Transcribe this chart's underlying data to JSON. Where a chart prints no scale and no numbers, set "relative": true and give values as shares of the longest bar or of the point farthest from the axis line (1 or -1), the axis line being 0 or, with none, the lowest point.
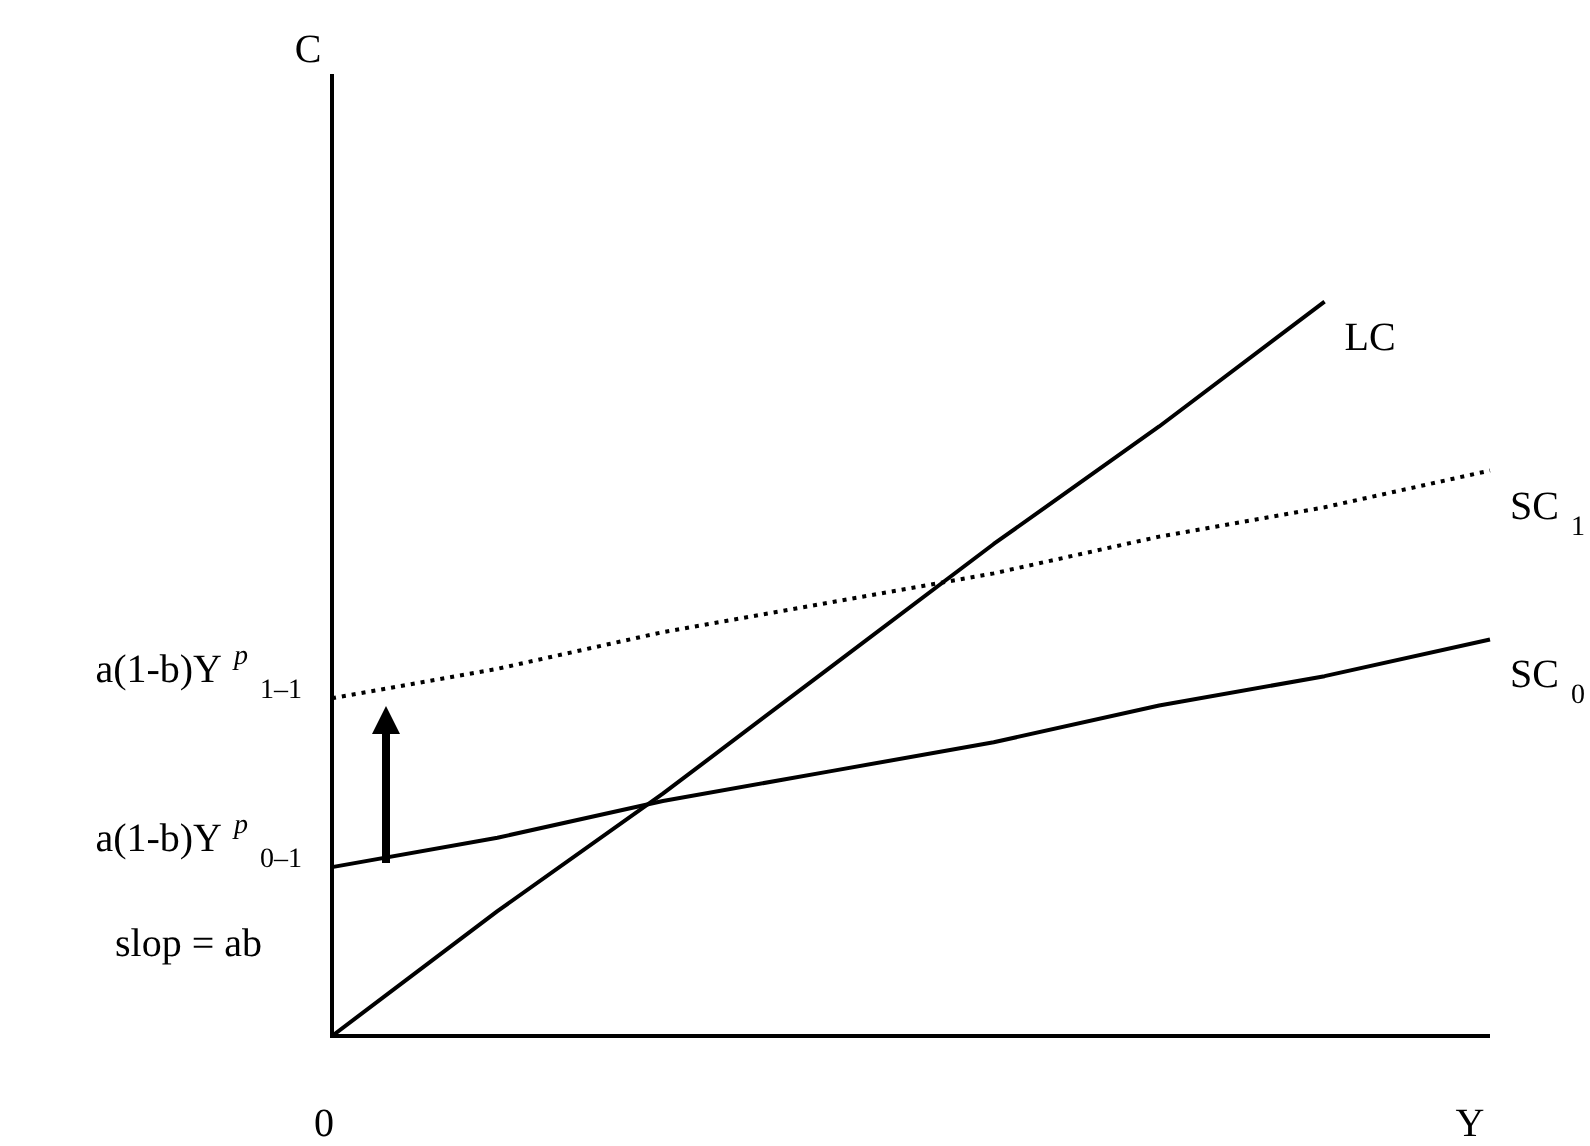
{
  "chart_data": {
    "type": "line",
    "relative": true,
    "xlabel": "Y",
    "categories": [
      null,
      null,
      null,
      null,
      null,
      null,
      null,
      null
    ],
    "series": [
      {
        "name": "LC",
        "color": "#000000",
        "line_style": "solid",
        "values": [
          0,
          0.17,
          0.33,
          0.5,
          0.67,
          0.83,
          1,
          null
        ]
      },
      {
        "name": "SC$_{1}$",
        "color": "#000000",
        "line_style": "dotted",
        "values": [
          0.46,
          0.5,
          0.55,
          0.59,
          0.63,
          0.68,
          0.72,
          0.77
        ]
      },
      {
        "name": "SC$_{0}$",
        "color": "#000000",
        "line_style": "solid",
        "values": [
          0.23,
          0.27,
          0.32,
          0.36,
          0.4,
          0.45,
          0.49,
          0.54
        ]
      }
    ],
    "annotations": [
      "C",
      "0",
      "a(1-b)Y$^{p}$$_{1–1}$",
      "a(1-b)Y$^{p}$$_{0–1}$",
      "slop = ab"
    ],
    "marker": "none",
    "legend": false
  }
}
